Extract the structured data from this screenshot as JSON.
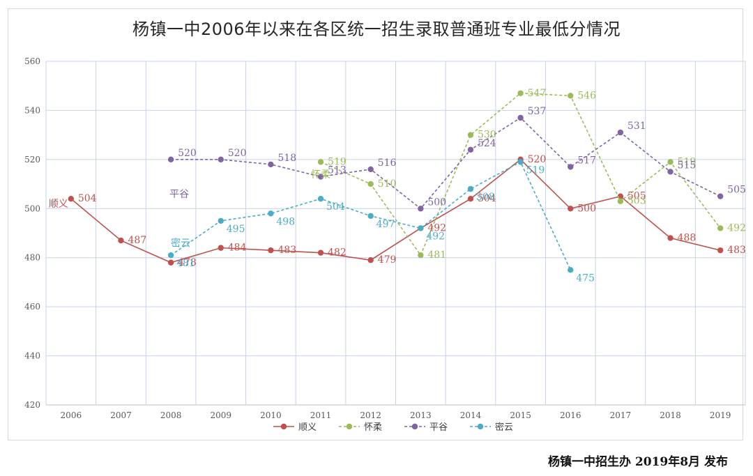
{
  "footer": "杨镇一中招生办  2019年8月 发布",
  "chart_data": {
    "type": "line",
    "title": "杨镇一中2006年以来在各区统一招生录取普通班专业最低分情况",
    "xlabel": "",
    "ylabel": "",
    "x": [
      "2006",
      "2007",
      "2008",
      "2009",
      "2010",
      "2011",
      "2012",
      "2013",
      "2014",
      "2015",
      "2016",
      "2017",
      "2018",
      "2019"
    ],
    "ylim": [
      420,
      560
    ],
    "yticks": [
      420,
      440,
      460,
      480,
      500,
      520,
      540,
      560
    ],
    "grid": true,
    "legend_position": "bottom",
    "series": [
      {
        "name": "顺义",
        "color": "#c0504d",
        "values": [
          504,
          487,
          478,
          484,
          483,
          482,
          479,
          492,
          504,
          520,
          500,
          505,
          488,
          483
        ]
      },
      {
        "name": "怀柔",
        "color": "#9bbb59",
        "values": [
          null,
          null,
          null,
          null,
          null,
          519,
          510,
          481,
          530,
          547,
          546,
          503,
          519,
          492
        ]
      },
      {
        "name": "平谷",
        "color": "#8064a2",
        "values": [
          null,
          null,
          520,
          520,
          518,
          513,
          516,
          500,
          524,
          537,
          517,
          531,
          515,
          505
        ]
      },
      {
        "name": "密云",
        "color": "#4bacc6",
        "values": [
          null,
          null,
          481,
          495,
          498,
          504,
          497,
          492,
          508,
          519,
          475,
          null,
          null,
          null
        ]
      }
    ],
    "annotations": [
      {
        "text": "顺义",
        "x": "2006",
        "y": 502
      },
      {
        "text": "平谷",
        "x": "2008",
        "y": 506
      },
      {
        "text": "密云",
        "x": "2008",
        "y": 486
      },
      {
        "text": "怀柔",
        "x": "2011",
        "y": 514
      }
    ]
  }
}
